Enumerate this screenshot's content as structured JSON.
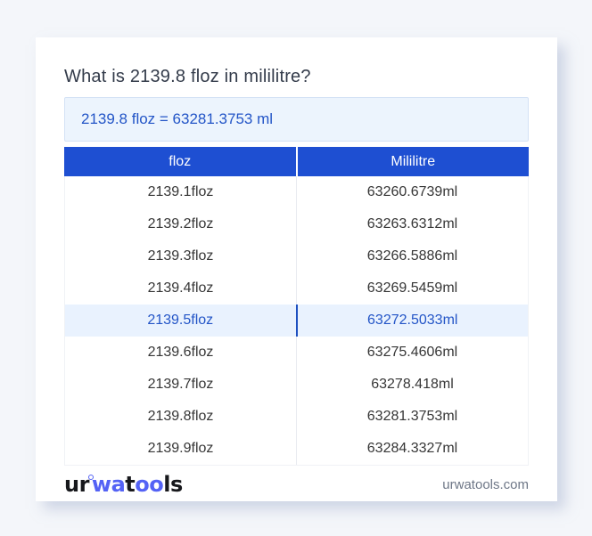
{
  "title": "What is 2139.8 floz in mililitre?",
  "result": {
    "text": "2139.8 floz = 63281.3753 ml"
  },
  "table": {
    "columns": [
      "floz",
      "Mililitre"
    ],
    "highlighted_index": 4,
    "rows": [
      [
        "2139.1floz",
        "63260.6739ml"
      ],
      [
        "2139.2floz",
        "63263.6312ml"
      ],
      [
        "2139.3floz",
        "63266.5886ml"
      ],
      [
        "2139.4floz",
        "63269.5459ml"
      ],
      [
        "2139.5floz",
        "63272.5033ml"
      ],
      [
        "2139.6floz",
        "63275.4606ml"
      ],
      [
        "2139.7floz",
        "63278.418ml"
      ],
      [
        "2139.8floz",
        "63281.3753ml"
      ],
      [
        "2139.9floz",
        "63284.3327ml"
      ]
    ]
  },
  "footer": {
    "logo": {
      "seg1": "ur",
      "seg2": "wa",
      "seg3": "t",
      "seg4": "oo",
      "seg5": "ls"
    },
    "site": "urwatools.com"
  },
  "colors": {
    "page_bg": "#f4f6fa",
    "header_bg": "#1e4fd2",
    "accent_text": "#2355c7",
    "highlight_bg": "#e9f2fe",
    "highlight_divider": "#1d4fc0",
    "result_bg": "#ecf4fd",
    "result_border": "#d4e2f5",
    "logo_blue": "#5462f5",
    "title_text": "#333b4a",
    "cell_text": "#363636",
    "footer_text": "#6e7787"
  }
}
